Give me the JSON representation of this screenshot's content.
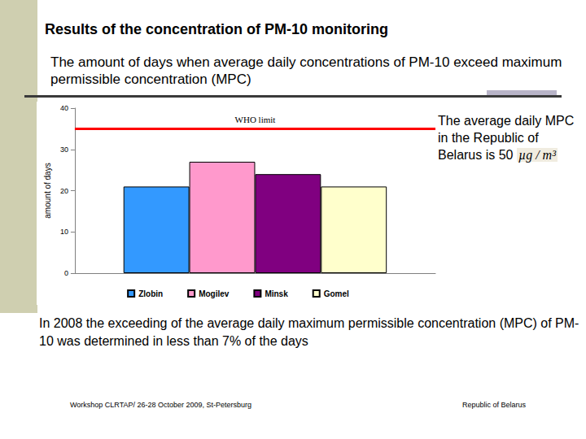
{
  "title": "Results of the concentration of PM-10 monitoring",
  "subtitle": "The amount of days when average daily concentrations of PM-10 exceed maximum permissible concentration (MPC)",
  "side_note": "The average daily MPC in the Republic of Belarus is 50",
  "side_note_unit": "µg / m³",
  "conclusion": "In 2008 the exceeding of the average daily maximum permissible concentration (MPC) of PM-10 was determined in less than 7% of the days",
  "footer": [
    "Workshop CLRTAP/ 26-28 October 2009, St-Petersburg",
    "Republic of Belarus"
  ],
  "chart_data": {
    "type": "bar",
    "ylabel": "amount of days",
    "categories": [
      null
    ],
    "series": [
      {
        "name": "Zlobin",
        "color": "#3399ff",
        "values": [
          21
        ]
      },
      {
        "name": "Mogilev",
        "color": "#ff99cc",
        "values": [
          27
        ]
      },
      {
        "name": "Minsk",
        "color": "#800080",
        "values": [
          24
        ]
      },
      {
        "name": "Gomel",
        "color": "#ffffcc",
        "values": [
          21
        ]
      }
    ],
    "annotations": [
      {
        "label": "WHO limit",
        "value": 35,
        "color": "#ff0000"
      }
    ],
    "ylim": [
      0,
      40
    ],
    "yticks": [
      0,
      10,
      20,
      30,
      40
    ],
    "grid": false,
    "legend": "bottom",
    "tick_labels": "y"
  }
}
